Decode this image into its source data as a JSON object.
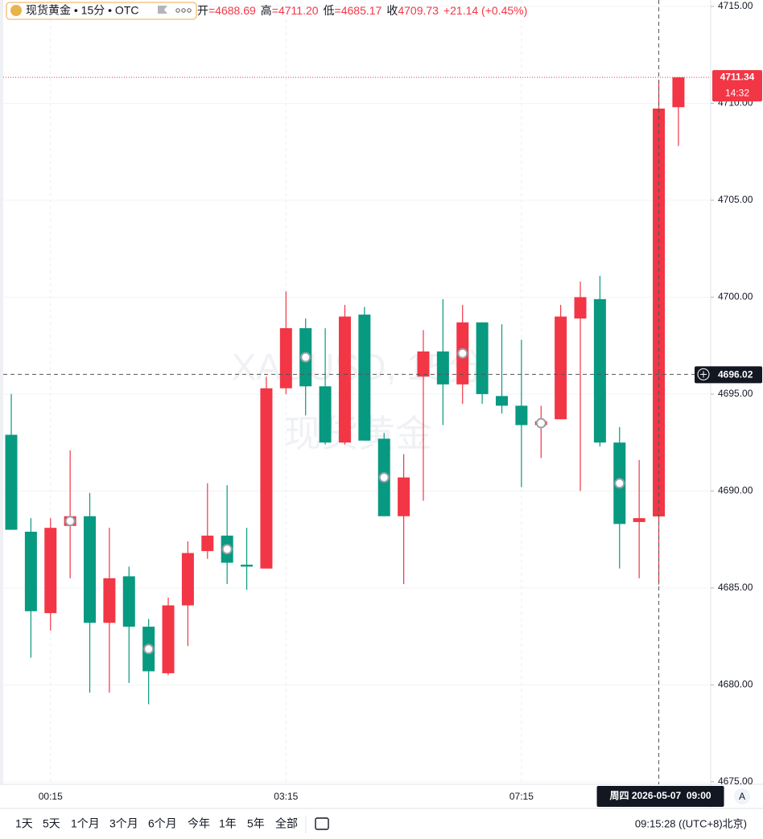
{
  "chart_data": {
    "type": "candlestick",
    "header": {
      "symbol": "现货黄金 • 15分 • OTC",
      "ohlc": [
        {
          "label": "开",
          "value": "=4688.69"
        },
        {
          "label": "高",
          "value": "=4711.20"
        },
        {
          "label": "低",
          "value": "=4685.17"
        },
        {
          "label": "收",
          "value": "4709.73"
        }
      ],
      "change": "+21.14 (+0.45%)"
    },
    "watermark": [
      "XAUUSD, 15分",
      "现货黄金"
    ],
    "categories": [
      null,
      null,
      "00:15",
      null,
      null,
      null,
      null,
      null,
      null,
      null,
      null,
      null,
      null,
      null,
      "03:15",
      null,
      null,
      null,
      null,
      null,
      null,
      null,
      null,
      null,
      null,
      null,
      "07:15",
      null,
      null,
      null,
      null,
      null,
      null,
      null,
      null
    ],
    "open": [
      4692.9,
      4687.9,
      4683.7,
      4688.2,
      4688.7,
      4683.2,
      4685.6,
      4683.0,
      4680.6,
      4684.1,
      4686.9,
      4687.7,
      4686.2,
      4686.0,
      4695.3,
      4698.4,
      4695.4,
      4692.5,
      4699.1,
      4692.7,
      4688.7,
      4695.9,
      4697.2,
      4695.5,
      4698.7,
      4694.9,
      4694.4,
      4693.4,
      4693.7,
      4698.9,
      4699.9,
      4692.5,
      4688.4,
      4688.69,
      4709.8
    ],
    "high": [
      4695.0,
      4688.6,
      4688.6,
      4692.1,
      4689.9,
      4688.1,
      4686.1,
      4683.4,
      4684.5,
      4687.4,
      4690.4,
      4690.3,
      4688.1,
      4695.9,
      4700.3,
      4698.9,
      4698.4,
      4699.6,
      4699.5,
      4693.0,
      4691.9,
      4698.3,
      4699.9,
      4699.6,
      4698.7,
      4698.6,
      4697.8,
      4694.4,
      4699.6,
      4700.8,
      4701.1,
      4693.3,
      4691.6,
      4711.2,
      4711.34
    ],
    "low": [
      4688.0,
      4681.4,
      4682.8,
      4685.5,
      4679.6,
      4679.6,
      4680.1,
      4679.0,
      4680.5,
      4682.0,
      4686.5,
      4685.2,
      4684.9,
      4686.0,
      4695.0,
      4693.9,
      4692.4,
      4692.4,
      4692.6,
      4688.7,
      4685.2,
      4689.5,
      4693.4,
      4694.5,
      4694.5,
      4694.0,
      4690.2,
      4691.7,
      4693.7,
      4690.0,
      4692.3,
      4686.0,
      4685.5,
      4685.17,
      4707.8
    ],
    "close": [
      4688.0,
      4683.8,
      4688.1,
      4688.7,
      4683.2,
      4685.5,
      4683.0,
      4680.7,
      4684.1,
      4686.8,
      4687.7,
      4686.3,
      4686.1,
      4695.3,
      4698.4,
      4695.4,
      4692.5,
      4699.0,
      4692.6,
      4688.7,
      4690.7,
      4697.2,
      4695.5,
      4698.7,
      4695.0,
      4694.4,
      4693.4,
      4693.6,
      4699.0,
      4700.0,
      4692.5,
      4688.3,
      4688.6,
      4709.73,
      4711.34
    ],
    "up_color": "#f23645",
    "down_color": "#089981",
    "ylim": [
      4674.87,
      4715.33
    ],
    "yticks": [
      {
        "value": 4675,
        "label": "4675.00"
      },
      {
        "value": 4680,
        "label": "4680.00"
      },
      {
        "value": 4685,
        "label": "4685.00"
      },
      {
        "value": 4690,
        "label": "4690.00"
      },
      {
        "value": 4695,
        "label": "4695.00"
      },
      {
        "value": 4700,
        "label": "4700.00"
      },
      {
        "value": 4705,
        "label": "4705.00"
      },
      {
        "value": 4710,
        "label": "4710.00"
      },
      {
        "value": 4715,
        "label": "4715.00"
      }
    ],
    "grid": true,
    "countdown": "14:32",
    "crosshair": {
      "price": 4696.02,
      "time": "周四 2026-05-07  09:00"
    },
    "toolbar": {
      "ranges": [
        "1天",
        "5天",
        "1个月",
        "3个月",
        "6个月",
        "今年",
        "1年",
        "5年",
        "全部"
      ],
      "clock": "09:15:28 ((UTC+8)北京)",
      "auto": "A"
    }
  }
}
